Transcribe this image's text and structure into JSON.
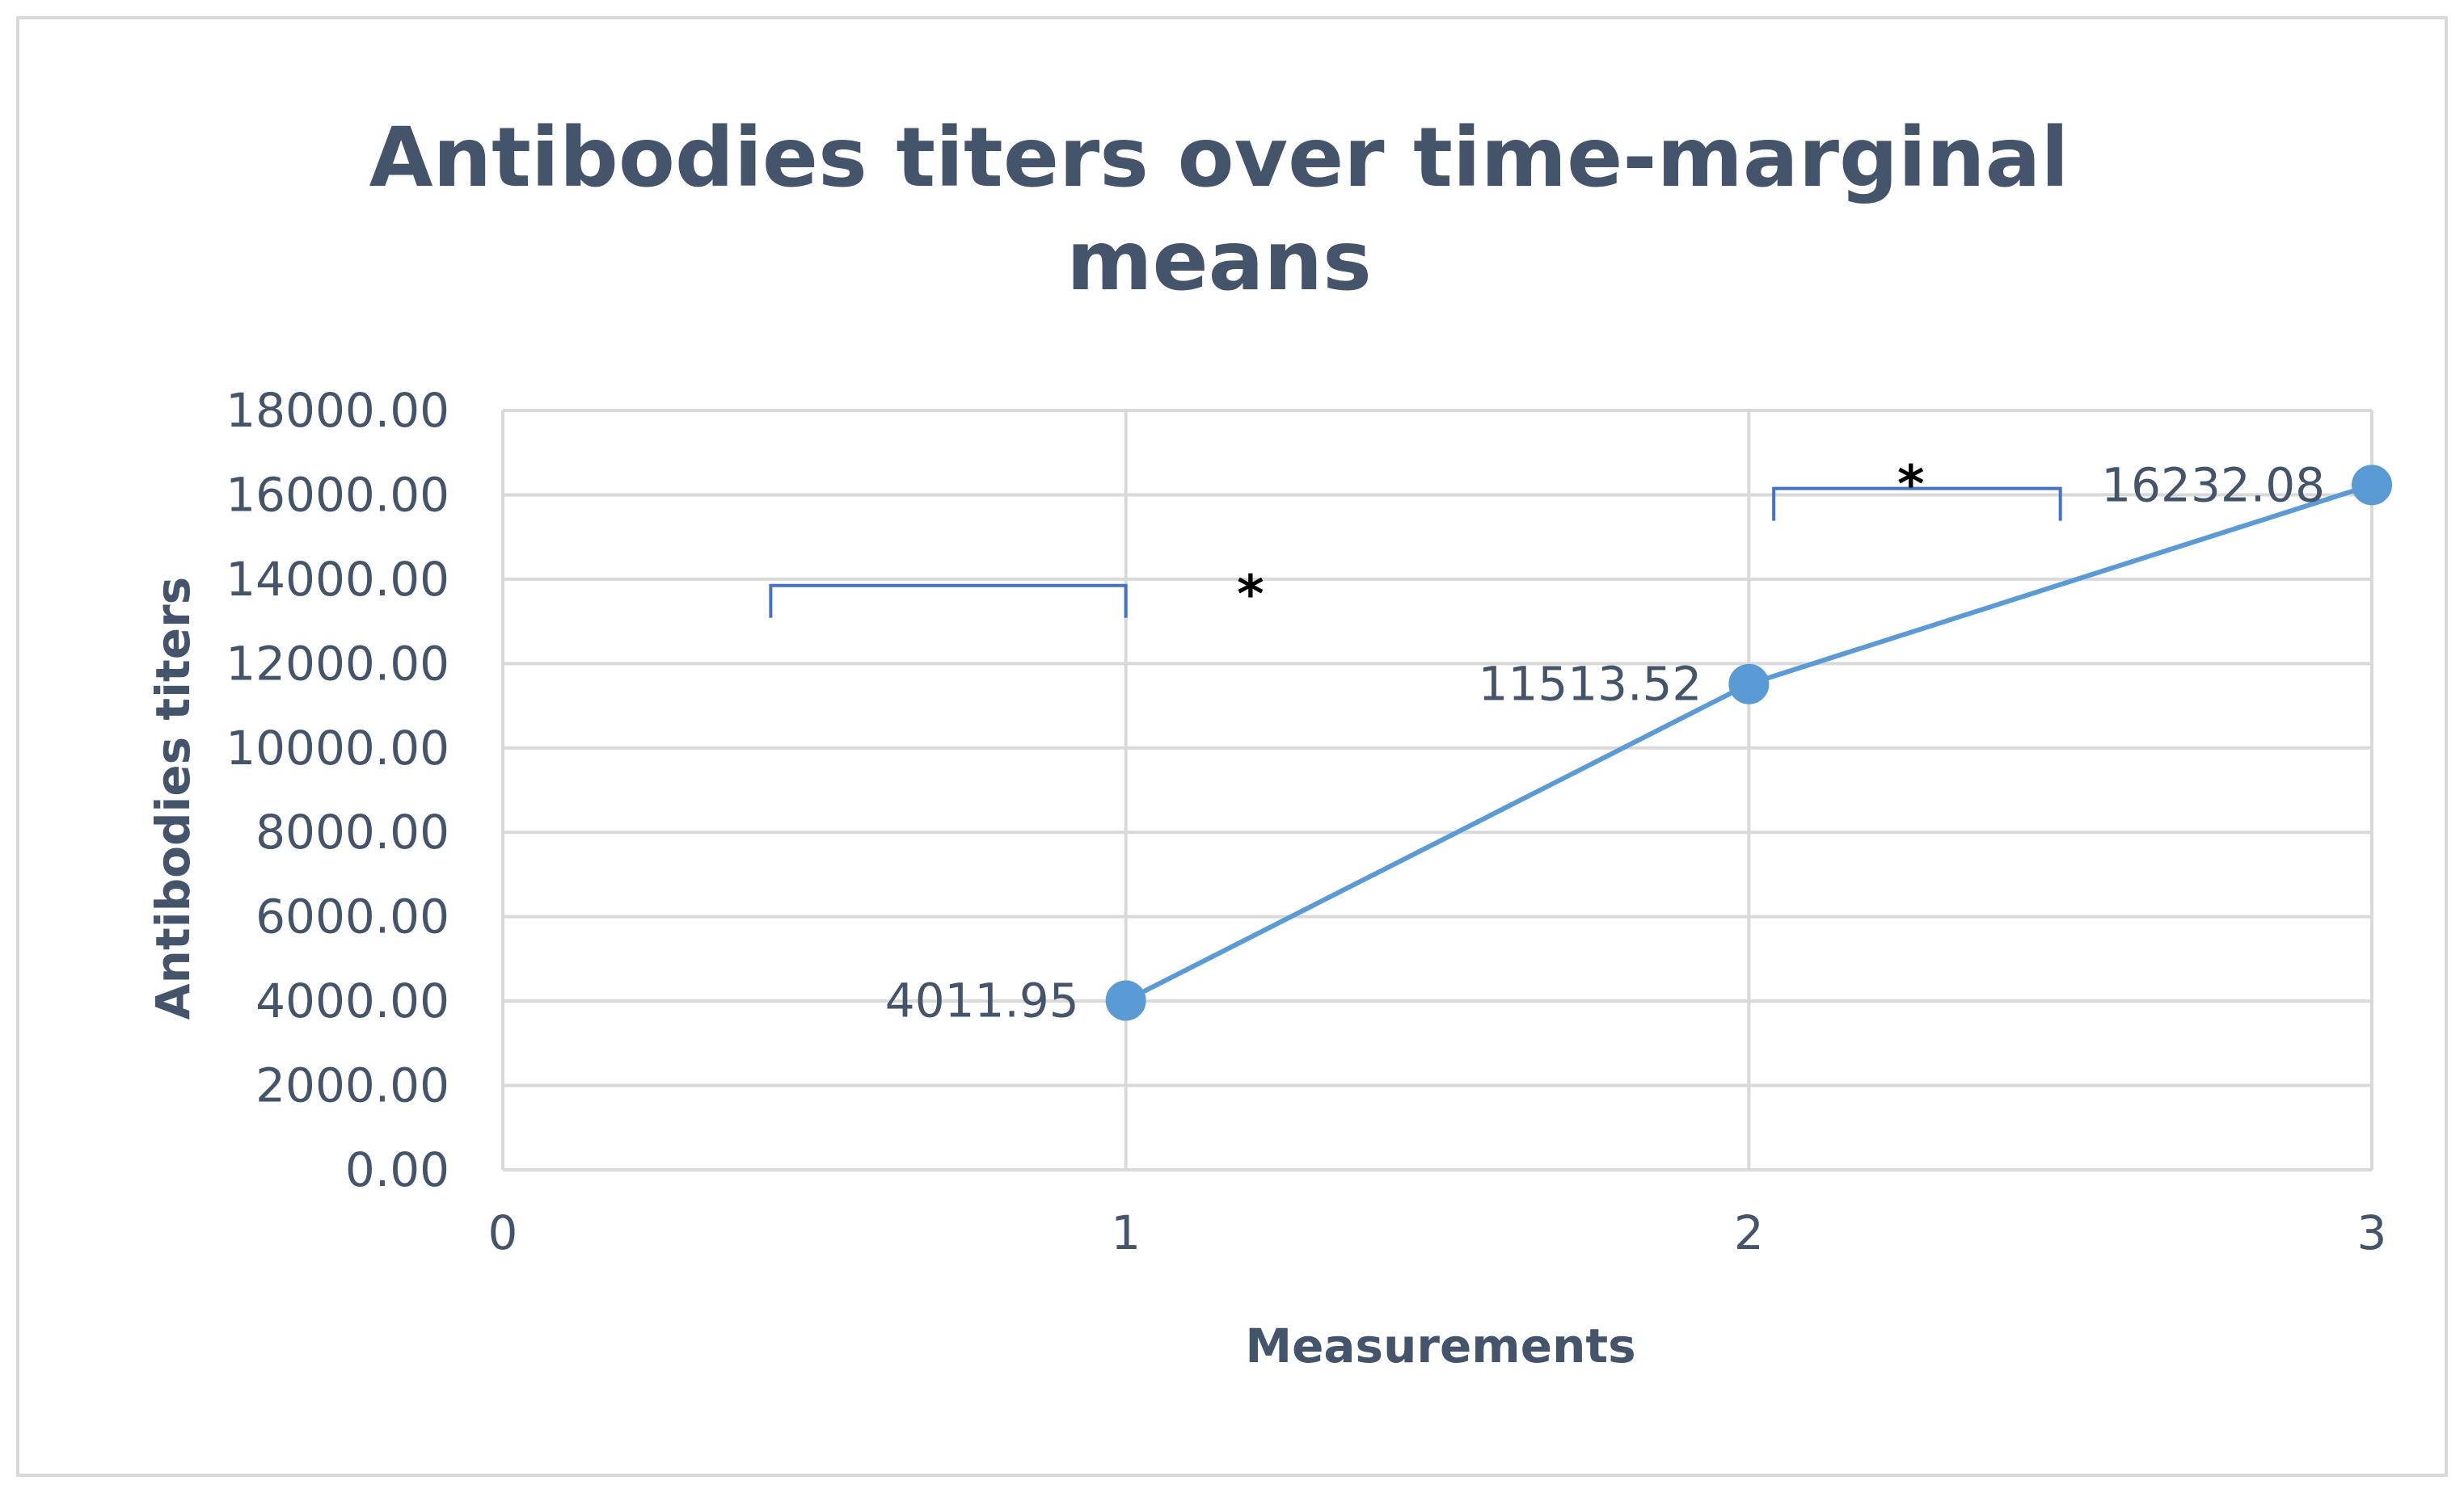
{
  "chart_data": {
    "type": "scatter",
    "title": "Antibodies titers over time-marginal means",
    "title_lines": [
      "Antibodies titers over time-marginal",
      "means"
    ],
    "xlabel": "Measurements",
    "ylabel": "Antibodies titers",
    "xlim": [
      0,
      3
    ],
    "ylim": [
      0,
      18000
    ],
    "x_ticks": [
      0,
      1,
      2,
      3
    ],
    "x_tick_labels": [
      "0",
      "1",
      "2",
      "3"
    ],
    "y_ticks": [
      0,
      2000,
      4000,
      6000,
      8000,
      10000,
      12000,
      14000,
      16000,
      18000
    ],
    "y_tick_labels": [
      "0.00",
      "2000.00",
      "4000.00",
      "6000.00",
      "8000.00",
      "10000.00",
      "12000.00",
      "14000.00",
      "16000.00",
      "18000.00"
    ],
    "grid": true,
    "legend": false,
    "series": [
      {
        "x": [
          1,
          2,
          3
        ],
        "y": [
          4011.95,
          11513.52,
          16232.08
        ],
        "data_labels": [
          "4011.95",
          "11513.52",
          "16232.08"
        ],
        "color": "#5b9bd5"
      }
    ],
    "annotations": [
      {
        "type": "bracket",
        "x_start": 0.43,
        "x_end": 1.0,
        "y": 13850,
        "color": "#4472c4"
      },
      {
        "type": "bracket",
        "x_start": 2.04,
        "x_end": 2.5,
        "y": 16150,
        "color": "#4472c4"
      },
      {
        "type": "text",
        "text": "*",
        "x": 1.2,
        "y": 13800
      },
      {
        "type": "text",
        "text": "*",
        "x": 2.26,
        "y": 16400
      }
    ],
    "colors": {
      "line": "#5b9bd5",
      "grid": "#d9d9d9",
      "text": "#44546a",
      "bracket": "#4472c4"
    }
  }
}
